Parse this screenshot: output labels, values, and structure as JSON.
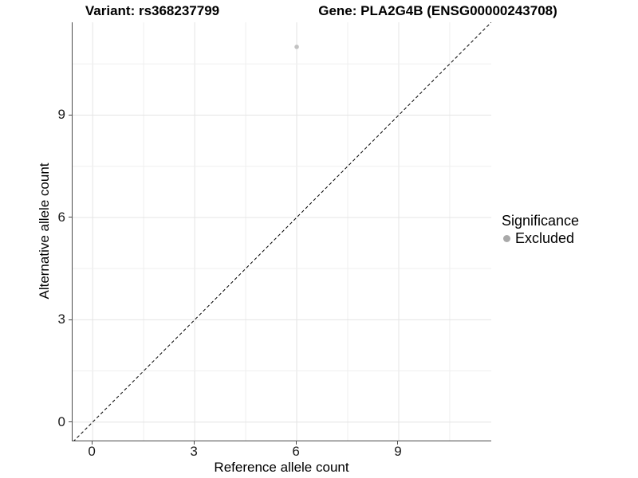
{
  "titles": {
    "left": "Variant: rs368237799",
    "right": "Gene: PLA2G4B (ENSG00000243708)"
  },
  "chart_data": {
    "type": "scatter",
    "title_left": "Variant: rs368237799",
    "title_right": "Gene: PLA2G4B (ENSG00000243708)",
    "xlabel": "Reference allele count",
    "ylabel": "Alternative allele count",
    "xlim": [
      -0.59,
      11.72
    ],
    "ylim": [
      -0.54,
      11.72
    ],
    "x_ticks": [
      0,
      3,
      6,
      9
    ],
    "y_ticks": [
      0,
      3,
      6,
      9
    ],
    "minor_tick_step": 1.5,
    "grid": "major+minor",
    "points": [
      {
        "x": 6,
        "y": 11,
        "significance": "Excluded"
      }
    ],
    "reference_line": {
      "style": "dashed",
      "slope": 1,
      "intercept": 0,
      "meaning": "identity y=x"
    },
    "legend": {
      "title": "Significance",
      "position": "right",
      "items": [
        {
          "label": "Excluded",
          "color": "#a9a9a9",
          "shape": "circle"
        }
      ]
    },
    "colors": {
      "point": "#c2c2c2",
      "grid_major": "#e4e4e4",
      "grid_minor": "#efefef",
      "axis_line": "#4a4a4a",
      "dashed_line": "#000000",
      "tick_text": "#1a1a1a"
    }
  }
}
